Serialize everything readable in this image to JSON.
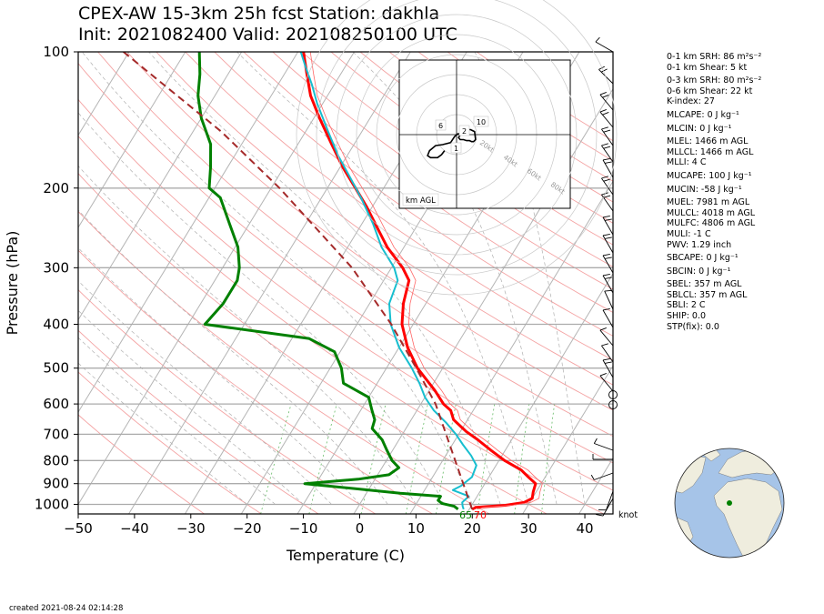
{
  "header": {
    "line1": "CPEX-AW 15-3km  25h fcst  Station: dakhla",
    "line2": "Init: 2021082400  Valid: 202108250100 UTC"
  },
  "footer": {
    "created": "created 2021-08-24 02:14:28"
  },
  "indices": [
    "0-1 km SRH: 86 m²s⁻²",
    "0-1 km Shear: 5 kt",
    "0-3 km SRH: 80 m²s⁻²",
    "0-6 km Shear: 22 kt",
    "K-index: 27",
    "MLCAPE: 0 J kg⁻¹",
    "MLCIN: 0 J kg⁻¹",
    "MLEL: 1466 m AGL",
    "MLLCL: 1466 m AGL",
    "MLLI: 4 C",
    "MUCAPE: 100 J kg⁻¹",
    "MUCIN: -58 J kg⁻¹",
    "MUEL: 7981 m AGL",
    "MULCL: 4018 m AGL",
    "MULFC: 4806 m AGL",
    "MULI: -1 C",
    "PWV: 1.29 inch",
    "SBCAPE: 0 J kg⁻¹",
    "SBCIN: 0 J kg⁻¹",
    "SBEL: 357 m AGL",
    "SBLCL: 357 m AGL",
    "SBLI: 2 C",
    "SHIP: 0.0",
    "STP(fix): 0.0"
  ],
  "hodograph": {
    "label": "km AGL",
    "ring_labels": [
      "20kt",
      "40kt",
      "60kt",
      "80kt"
    ],
    "height_labels": [
      "6",
      "10",
      "2",
      "1"
    ]
  },
  "wind_units_label": "knot",
  "surface_labels": {
    "dewpoint": "65",
    "temperature": "70"
  },
  "colors": {
    "temperature": "#ff0000",
    "dewpoint": "#008000",
    "wetbulb": "#17becf",
    "parcel": "#a52a2a"
  },
  "chart_data": {
    "type": "skew-t",
    "xlabel": "Temperature (C)",
    "ylabel": "Pressure (hPa)",
    "xlim": [
      -50,
      45
    ],
    "ylim": [
      1050,
      100
    ],
    "xticks": [
      -50,
      -40,
      -30,
      -20,
      -10,
      0,
      10,
      20,
      30,
      40
    ],
    "yticks": [
      100,
      200,
      300,
      400,
      500,
      600,
      700,
      800,
      900,
      1000
    ],
    "series": [
      {
        "key": "temperature",
        "points": [
          [
            1025,
            20.5
          ],
          [
            1015,
            21
          ],
          [
            1005,
            26
          ],
          [
            990,
            29
          ],
          [
            970,
            30
          ],
          [
            940,
            29.5
          ],
          [
            900,
            29
          ],
          [
            870,
            27
          ],
          [
            840,
            25
          ],
          [
            800,
            21
          ],
          [
            760,
            17.5
          ],
          [
            720,
            14
          ],
          [
            690,
            11
          ],
          [
            650,
            7.5
          ],
          [
            620,
            6
          ],
          [
            600,
            4
          ],
          [
            560,
            1
          ],
          [
            500,
            -4.5
          ],
          [
            450,
            -8.5
          ],
          [
            400,
            -12
          ],
          [
            360,
            -14
          ],
          [
            320,
            -15.5
          ],
          [
            300,
            -18
          ],
          [
            270,
            -23
          ],
          [
            250,
            -26
          ],
          [
            220,
            -31
          ],
          [
            200,
            -35
          ],
          [
            180,
            -39.5
          ],
          [
            160,
            -44
          ],
          [
            140,
            -49
          ],
          [
            125,
            -53
          ],
          [
            112,
            -56
          ],
          [
            100,
            -59
          ]
        ]
      },
      {
        "key": "wetbulb",
        "points": [
          [
            1025,
            19
          ],
          [
            1010,
            18.5
          ],
          [
            990,
            18
          ],
          [
            960,
            18.5
          ],
          [
            930,
            15
          ],
          [
            910,
            16
          ],
          [
            870,
            17
          ],
          [
            820,
            16.5
          ],
          [
            780,
            14.5
          ],
          [
            740,
            12
          ],
          [
            700,
            9.5
          ],
          [
            660,
            6.5
          ],
          [
            620,
            3
          ],
          [
            580,
            0
          ],
          [
            540,
            -2.5
          ],
          [
            500,
            -5.5
          ],
          [
            450,
            -10
          ],
          [
            400,
            -14
          ],
          [
            360,
            -16.5
          ],
          [
            320,
            -17.5
          ],
          [
            300,
            -19.5
          ],
          [
            270,
            -24
          ],
          [
            240,
            -28
          ],
          [
            210,
            -33
          ],
          [
            190,
            -37
          ],
          [
            170,
            -41.5
          ],
          [
            150,
            -46
          ],
          [
            130,
            -51
          ],
          [
            118,
            -54
          ],
          [
            108,
            -57
          ],
          [
            100,
            -59.5
          ]
        ]
      },
      {
        "key": "dewpoint",
        "points": [
          [
            1025,
            18
          ],
          [
            1010,
            17
          ],
          [
            995,
            14.5
          ],
          [
            980,
            13.5
          ],
          [
            960,
            13.5
          ],
          [
            945,
            6
          ],
          [
            900,
            -12
          ],
          [
            880,
            -3
          ],
          [
            860,
            2
          ],
          [
            830,
            3
          ],
          [
            800,
            1
          ],
          [
            760,
            -1
          ],
          [
            720,
            -3
          ],
          [
            680,
            -6
          ],
          [
            650,
            -6.5
          ],
          [
            620,
            -8
          ],
          [
            580,
            -10
          ],
          [
            540,
            -16
          ],
          [
            500,
            -18
          ],
          [
            460,
            -21
          ],
          [
            430,
            -27
          ],
          [
            400,
            -47
          ],
          [
            360,
            -46
          ],
          [
            320,
            -46
          ],
          [
            300,
            -47
          ],
          [
            270,
            -49.5
          ],
          [
            240,
            -53.5
          ],
          [
            210,
            -58
          ],
          [
            200,
            -61
          ],
          [
            180,
            -63
          ],
          [
            160,
            -65.5
          ],
          [
            140,
            -70
          ],
          [
            125,
            -73
          ],
          [
            112,
            -75
          ],
          [
            100,
            -77.5
          ]
        ]
      },
      {
        "key": "parcel",
        "points": [
          [
            1025,
            20.5
          ],
          [
            600,
            2.6
          ],
          [
            500,
            -4.7
          ],
          [
            400,
            -13.9
          ],
          [
            300,
            -27
          ],
          [
            200,
            -48.5
          ],
          [
            150,
            -65
          ],
          [
            100,
            -91
          ]
        ]
      }
    ],
    "hodograph_trace": [
      [
        2.0,
        -1.5
      ],
      [
        2.5,
        -0.5
      ],
      [
        1.5,
        0.6
      ],
      [
        1.0,
        1.5
      ],
      [
        1.8,
        2.5
      ],
      [
        3.5,
        2.5
      ],
      [
        5.0,
        3.0
      ],
      [
        6.5,
        3.0
      ],
      [
        7.5,
        3.5
      ],
      [
        8.5,
        3.5
      ],
      [
        9.5,
        2.5
      ],
      [
        9.0,
        -1.5
      ],
      [
        8.0,
        -2.0
      ],
      [
        7.0,
        -2.5
      ],
      [
        5.0,
        -2.5
      ],
      [
        3.0,
        -1.5
      ],
      [
        1.5,
        -0.5
      ],
      [
        0.5,
        -0.3
      ],
      [
        -1.0,
        1.0
      ],
      [
        -3.0,
        4.0
      ],
      [
        -7.0,
        5.0
      ],
      [
        -10.5,
        5.5
      ],
      [
        -13.5,
        8.0
      ],
      [
        -14.5,
        10.5
      ],
      [
        -13.0,
        11.5
      ],
      [
        -9.5,
        11.5
      ],
      [
        -7.5,
        10.0
      ],
      [
        -6.0,
        8.0
      ]
    ],
    "station_marker": {
      "lon": -15.9,
      "lat": 23.7
    }
  }
}
